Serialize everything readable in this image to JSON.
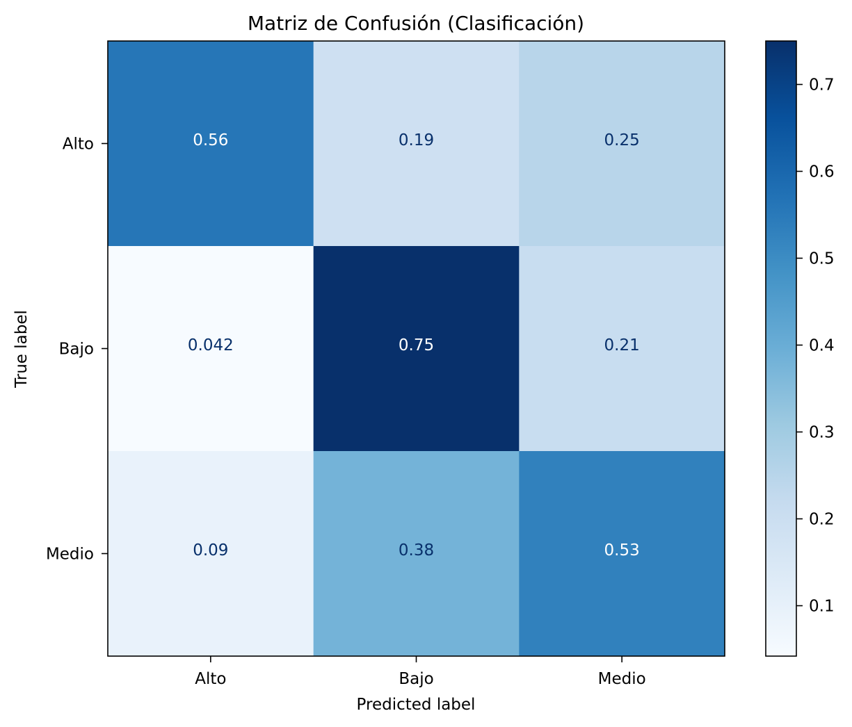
{
  "chart_data": {
    "type": "heatmap",
    "title": "Matriz de Confusión (Clasificación)",
    "xlabel": "Predicted label",
    "ylabel": "True label",
    "x_categories": [
      "Alto",
      "Bajo",
      "Medio"
    ],
    "y_categories": [
      "Alto",
      "Bajo",
      "Medio"
    ],
    "values": [
      [
        0.56,
        0.19,
        0.25
      ],
      [
        0.042,
        0.75,
        0.21
      ],
      [
        0.09,
        0.38,
        0.53
      ]
    ],
    "cell_labels": [
      [
        "0.56",
        "0.19",
        "0.25"
      ],
      [
        "0.042",
        "0.75",
        "0.21"
      ],
      [
        "0.09",
        "0.38",
        "0.53"
      ]
    ],
    "colormap": "Blues",
    "color_range": [
      0.042,
      0.75
    ],
    "colorbar": {
      "ticks": [
        0.1,
        0.2,
        0.3,
        0.4,
        0.5,
        0.6,
        0.7
      ],
      "tick_labels": [
        "0.1",
        "0.2",
        "0.3",
        "0.4",
        "0.5",
        "0.6",
        "0.7"
      ],
      "placement": "right"
    },
    "text_colors": {
      "dark": "#08306b",
      "light": "#ffffff"
    }
  }
}
